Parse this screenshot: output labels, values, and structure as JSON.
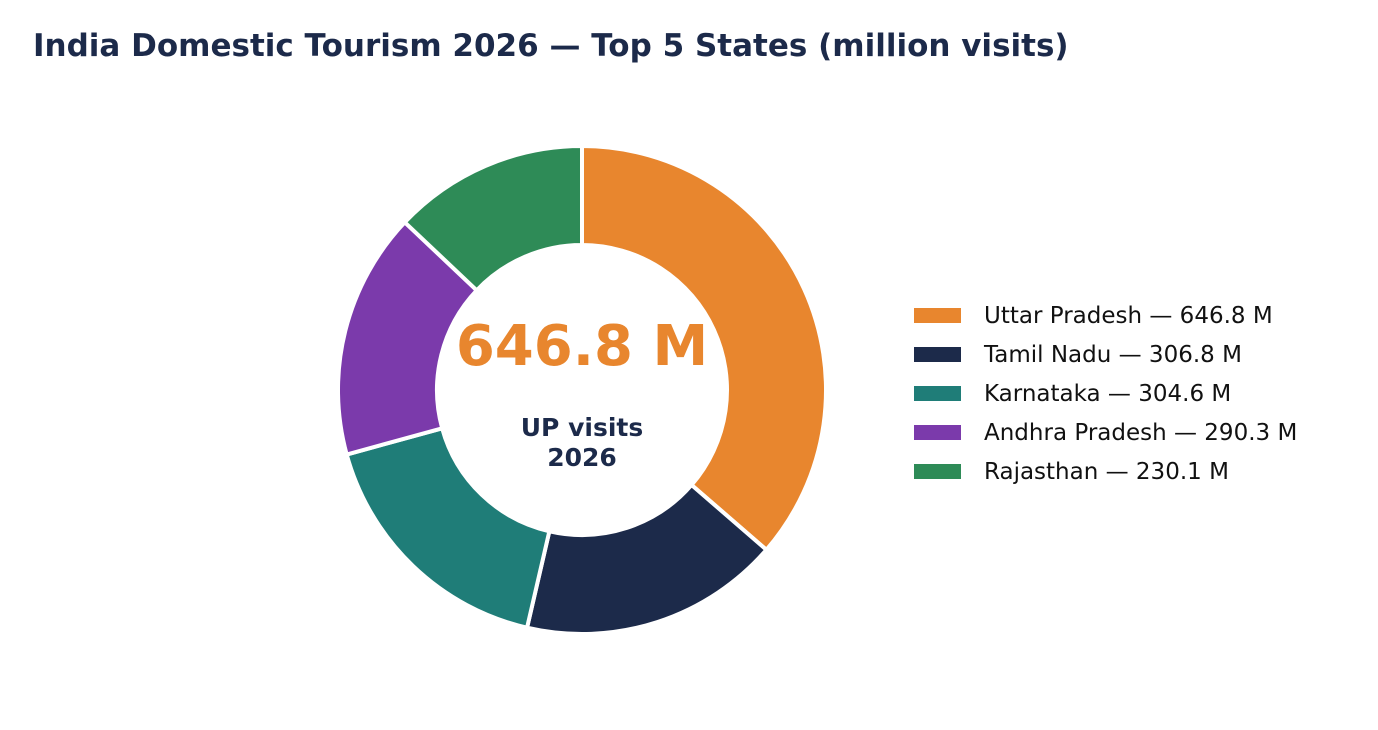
{
  "chart_data": {
    "type": "pie",
    "title": "India Domestic Tourism 2026 — Top 5 States (million visits)",
    "unit": "million visits",
    "categories": [
      "Uttar Pradesh",
      "Tamil Nadu",
      "Karnataka",
      "Andhra Pradesh",
      "Rajasthan"
    ],
    "values": [
      646.8,
      306.8,
      304.6,
      290.3,
      230.1
    ],
    "colors": [
      "#e8862e",
      "#1c2a4a",
      "#1f7d78",
      "#7b3aab",
      "#2e8b57"
    ],
    "legend_labels": [
      "Uttar Pradesh — 646.8 M",
      "Tamil Nadu — 306.8 M",
      "Karnataka — 304.6 M",
      "Andhra Pradesh — 290.3 M",
      "Rajasthan — 230.1 M"
    ],
    "legend_position": "right",
    "center_value": "646.8 M",
    "center_value_color": "#e8862e",
    "center_caption_line1": "UP visits",
    "center_caption_line2": "2026",
    "donut": true
  }
}
